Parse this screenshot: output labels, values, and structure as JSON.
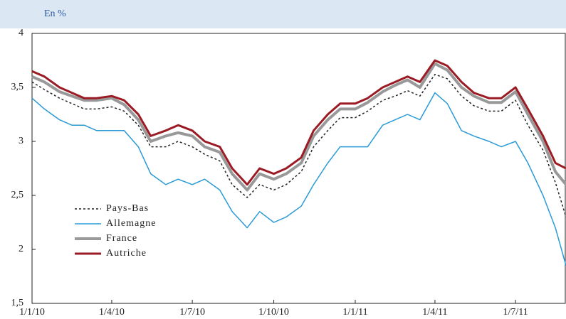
{
  "chart_data": {
    "type": "line",
    "subtitle": "En %",
    "x": [
      "2010-01-01",
      "2010-01-15",
      "2010-02-01",
      "2010-02-15",
      "2010-03-01",
      "2010-03-15",
      "2010-04-01",
      "2010-04-15",
      "2010-05-01",
      "2010-05-15",
      "2010-06-01",
      "2010-06-15",
      "2010-07-01",
      "2010-07-15",
      "2010-08-01",
      "2010-08-15",
      "2010-09-01",
      "2010-09-15",
      "2010-10-01",
      "2010-10-15",
      "2010-11-01",
      "2010-11-15",
      "2010-12-01",
      "2010-12-15",
      "2011-01-01",
      "2011-01-15",
      "2011-02-01",
      "2011-02-15",
      "2011-03-01",
      "2011-03-15",
      "2011-04-01",
      "2011-04-15",
      "2011-05-01",
      "2011-05-15",
      "2011-06-01",
      "2011-06-15",
      "2011-07-01",
      "2011-07-15",
      "2011-08-01",
      "2011-08-15",
      "2011-08-27"
    ],
    "series": [
      {
        "name": "Pays-Bas",
        "color": "#222222",
        "dash": true,
        "width": 1.5,
        "values": [
          3.55,
          3.48,
          3.4,
          3.35,
          3.3,
          3.3,
          3.32,
          3.28,
          3.15,
          2.95,
          2.95,
          3.0,
          2.95,
          2.88,
          2.82,
          2.6,
          2.48,
          2.6,
          2.55,
          2.6,
          2.72,
          2.95,
          3.1,
          3.22,
          3.22,
          3.28,
          3.38,
          3.42,
          3.47,
          3.42,
          3.62,
          3.58,
          3.42,
          3.33,
          3.28,
          3.28,
          3.38,
          3.15,
          2.92,
          2.62,
          2.3
        ]
      },
      {
        "name": "Allemagne",
        "color": "#2a9ad6",
        "dash": false,
        "width": 1.5,
        "values": [
          3.4,
          3.3,
          3.2,
          3.15,
          3.15,
          3.1,
          3.1,
          3.1,
          2.95,
          2.7,
          2.6,
          2.65,
          2.6,
          2.65,
          2.55,
          2.35,
          2.2,
          2.35,
          2.25,
          2.3,
          2.4,
          2.6,
          2.8,
          2.95,
          2.95,
          2.95,
          3.15,
          3.2,
          3.25,
          3.2,
          3.45,
          3.35,
          3.1,
          3.05,
          3.0,
          2.95,
          3.0,
          2.8,
          2.5,
          2.2,
          1.85
        ]
      },
      {
        "name": "France",
        "color": "#999999",
        "dash": false,
        "width": 4,
        "values": [
          3.6,
          3.55,
          3.46,
          3.42,
          3.38,
          3.38,
          3.4,
          3.34,
          3.2,
          3.0,
          3.05,
          3.08,
          3.05,
          2.95,
          2.9,
          2.7,
          2.55,
          2.7,
          2.65,
          2.7,
          2.8,
          3.05,
          3.2,
          3.3,
          3.3,
          3.36,
          3.46,
          3.52,
          3.57,
          3.5,
          3.72,
          3.66,
          3.5,
          3.42,
          3.36,
          3.36,
          3.46,
          3.25,
          3.0,
          2.72,
          2.6
        ]
      },
      {
        "name": "Autriche",
        "color": "#9b1b24",
        "dash": false,
        "width": 3,
        "values": [
          3.65,
          3.6,
          3.5,
          3.45,
          3.4,
          3.4,
          3.42,
          3.38,
          3.25,
          3.05,
          3.1,
          3.15,
          3.1,
          3.0,
          2.95,
          2.75,
          2.6,
          2.75,
          2.7,
          2.75,
          2.85,
          3.1,
          3.25,
          3.35,
          3.35,
          3.4,
          3.5,
          3.55,
          3.6,
          3.55,
          3.75,
          3.7,
          3.55,
          3.45,
          3.4,
          3.4,
          3.5,
          3.3,
          3.05,
          2.8,
          2.75
        ]
      }
    ],
    "xlim": [
      "2010-01-01",
      "2011-08-27"
    ],
    "xticks": [
      {
        "value": "2010-01-01",
        "label": "1/1/10"
      },
      {
        "value": "2010-04-01",
        "label": "1/4/10"
      },
      {
        "value": "2010-07-01",
        "label": "1/7/10"
      },
      {
        "value": "2010-10-01",
        "label": "1/10/10"
      },
      {
        "value": "2011-01-01",
        "label": "1/1/11"
      },
      {
        "value": "2011-04-01",
        "label": "1/4/11"
      },
      {
        "value": "2011-07-01",
        "label": "1/7/11"
      }
    ],
    "ylim": [
      1.5,
      4
    ],
    "yticks": [
      {
        "value": 1.5,
        "label": "1,5"
      },
      2,
      {
        "value": 2.5,
        "label": "2,5"
      },
      3,
      {
        "value": 3.5,
        "label": "3,5"
      },
      4
    ],
    "grid": false
  }
}
